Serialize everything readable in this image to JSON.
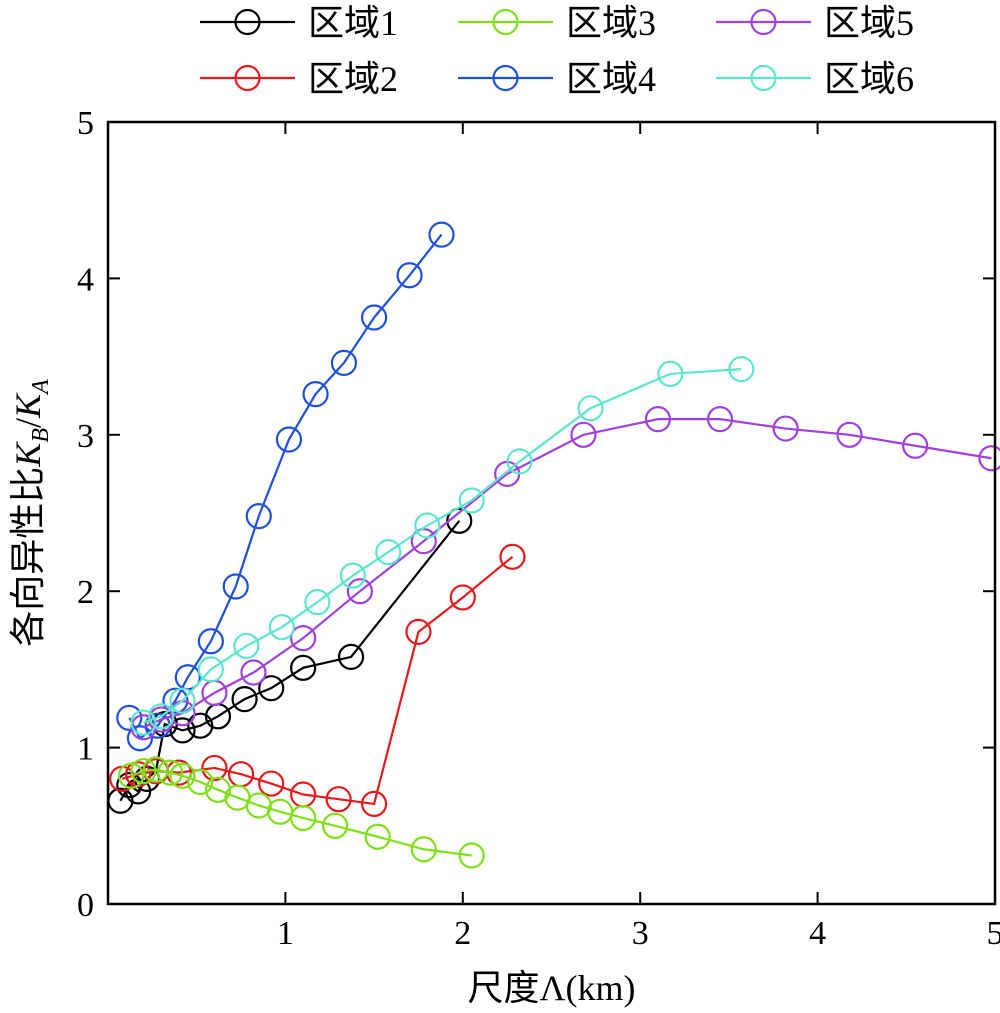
{
  "chart_data": {
    "type": "line",
    "xlabel": "尺度Λ(km)",
    "ylabel": "各向异性比K_B/K_A",
    "xlim": [
      0,
      5
    ],
    "ylim": [
      0,
      5
    ],
    "xticks": [
      1,
      2,
      3,
      4,
      5
    ],
    "yticks": [
      0,
      1,
      2,
      3,
      4,
      5
    ],
    "grid": false,
    "legend_position": "top",
    "marker": "open-circle",
    "series": [
      {
        "name": "区域1",
        "color": "#000000",
        "x": [
          0.07,
          0.12,
          0.17,
          0.22,
          0.27,
          0.32,
          0.42,
          0.52,
          0.62,
          0.77,
          0.92,
          1.1,
          1.37,
          1.98
        ],
        "y": [
          0.66,
          0.76,
          0.72,
          0.8,
          0.85,
          1.15,
          1.11,
          1.14,
          1.2,
          1.31,
          1.38,
          1.51,
          1.58,
          2.45
        ]
      },
      {
        "name": "区域2",
        "color": "#e8191c",
        "x": [
          0.08,
          0.17,
          0.27,
          0.4,
          0.6,
          0.75,
          0.92,
          1.1,
          1.3,
          1.5,
          1.75,
          2.0,
          2.28
        ],
        "y": [
          0.8,
          0.83,
          0.85,
          0.84,
          0.87,
          0.83,
          0.77,
          0.7,
          0.67,
          0.64,
          1.74,
          1.96,
          2.22
        ]
      },
      {
        "name": "区域3",
        "color": "#7fe01a",
        "x": [
          0.13,
          0.2,
          0.27,
          0.35,
          0.42,
          0.52,
          0.62,
          0.73,
          0.85,
          0.97,
          1.1,
          1.28,
          1.52,
          1.78,
          2.05
        ],
        "y": [
          0.82,
          0.85,
          0.86,
          0.84,
          0.82,
          0.78,
          0.73,
          0.68,
          0.63,
          0.59,
          0.55,
          0.5,
          0.43,
          0.35,
          0.31
        ]
      },
      {
        "name": "区域4",
        "color": "#1f50d9",
        "x": [
          0.12,
          0.18,
          0.28,
          0.38,
          0.45,
          0.58,
          0.72,
          0.85,
          1.02,
          1.17,
          1.33,
          1.5,
          1.7,
          1.88
        ],
        "y": [
          1.19,
          1.06,
          1.14,
          1.3,
          1.45,
          1.68,
          2.03,
          2.48,
          2.97,
          3.26,
          3.46,
          3.75,
          4.02,
          4.28
        ]
      },
      {
        "name": "区域5",
        "color": "#a040e0",
        "x": [
          0.2,
          0.3,
          0.42,
          0.6,
          0.82,
          1.1,
          1.42,
          1.78,
          2.25,
          2.68,
          3.1,
          3.45,
          3.82,
          4.18,
          4.55,
          4.98
        ],
        "y": [
          1.13,
          1.18,
          1.22,
          1.35,
          1.48,
          1.7,
          2.0,
          2.32,
          2.75,
          3.0,
          3.1,
          3.1,
          3.04,
          3.0,
          2.93,
          2.85
        ]
      },
      {
        "name": "区域6",
        "color": "#5ce6cc",
        "x": [
          0.2,
          0.3,
          0.42,
          0.58,
          0.78,
          0.98,
          1.18,
          1.38,
          1.58,
          1.8,
          2.05,
          2.32,
          2.72,
          3.17,
          3.57
        ],
        "y": [
          1.16,
          1.2,
          1.3,
          1.5,
          1.65,
          1.77,
          1.93,
          2.1,
          2.25,
          2.42,
          2.58,
          2.83,
          3.17,
          3.39,
          3.42
        ]
      }
    ]
  }
}
